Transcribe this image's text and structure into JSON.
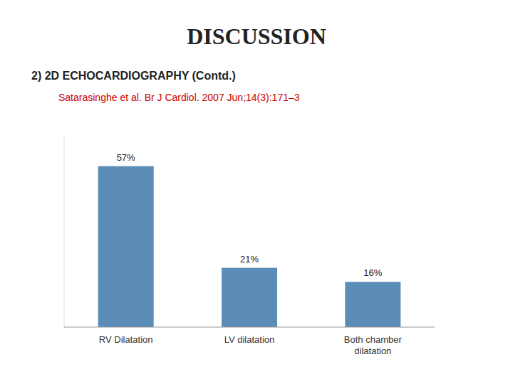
{
  "chart_data": {
    "type": "bar",
    "title": "DISCUSSION",
    "subtitle": "2) 2D ECHOCARDIOGRAPHY (Contd.)",
    "annotations": [
      {
        "text": "Satarasinghe et al. Br J Cardiol. 2007 Jun;14(3):171–3",
        "color": "#CC0000"
      }
    ],
    "categories": [
      "RV Dilatation",
      "LV dilatation",
      "Both chamber\ndilatation"
    ],
    "values": [
      57,
      21,
      16
    ],
    "value_labels": [
      "57%",
      "21%",
      "16%"
    ],
    "color": "#5B8DB8",
    "ylim": [
      0,
      68
    ],
    "grid": false,
    "data_labels": true,
    "tick_labels": "x"
  }
}
